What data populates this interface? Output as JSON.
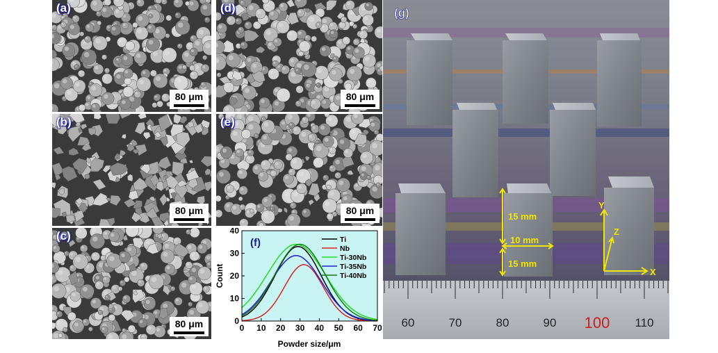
{
  "figure": {
    "panels": [
      {
        "id": "a",
        "label": "(a)",
        "scale_bar": "80 μm"
      },
      {
        "id": "b",
        "label": "(b)",
        "scale_bar": "80 μm"
      },
      {
        "id": "c",
        "label": "(c)",
        "scale_bar": "80 μm"
      },
      {
        "id": "d",
        "label": "(d)",
        "scale_bar": "80 μm"
      },
      {
        "id": "e",
        "label": "(e)",
        "scale_bar": "80 μm"
      }
    ],
    "photo": {
      "label": "(g)",
      "dim_height_1": "15 mm",
      "dim_width": "10 mm",
      "dim_height_2": "15 mm",
      "axis_x": "X",
      "axis_y": "Y",
      "axis_z": "Z",
      "ruler_numbers": [
        "60",
        "70",
        "80",
        "90",
        "100",
        "110"
      ],
      "colors": {
        "annotation": "#f2e600",
        "ruler_red": "#c82020"
      }
    }
  },
  "chart_data": {
    "type": "line",
    "panel_label": "(f)",
    "xlabel": "Powder size/μm",
    "ylabel": "Count",
    "xlim": [
      0,
      70
    ],
    "ylim": [
      0,
      40
    ],
    "xticks": [
      "0",
      "10",
      "20",
      "30",
      "40",
      "50",
      "60",
      "70"
    ],
    "yticks": [
      "0",
      "10",
      "20",
      "30",
      "40"
    ],
    "background": "#c8f4f4",
    "legend_position": "top-right",
    "series": [
      {
        "name": "Ti",
        "color": "#000000",
        "peak_x": 29,
        "peak_y": 33,
        "sigma": 12
      },
      {
        "name": "Nb",
        "color": "#e02020",
        "peak_x": 32,
        "peak_y": 25,
        "sigma": 10
      },
      {
        "name": "Ti-30Nb",
        "color": "#22dd22",
        "peak_x": 28,
        "peak_y": 34,
        "sigma": 15
      },
      {
        "name": "Ti-35Nb",
        "color": "#2020e0",
        "peak_x": 28,
        "peak_y": 29,
        "sigma": 13
      },
      {
        "name": "Ti-40Nb",
        "color": "#157a15",
        "peak_x": 30,
        "peak_y": 34,
        "sigma": 13
      }
    ]
  }
}
